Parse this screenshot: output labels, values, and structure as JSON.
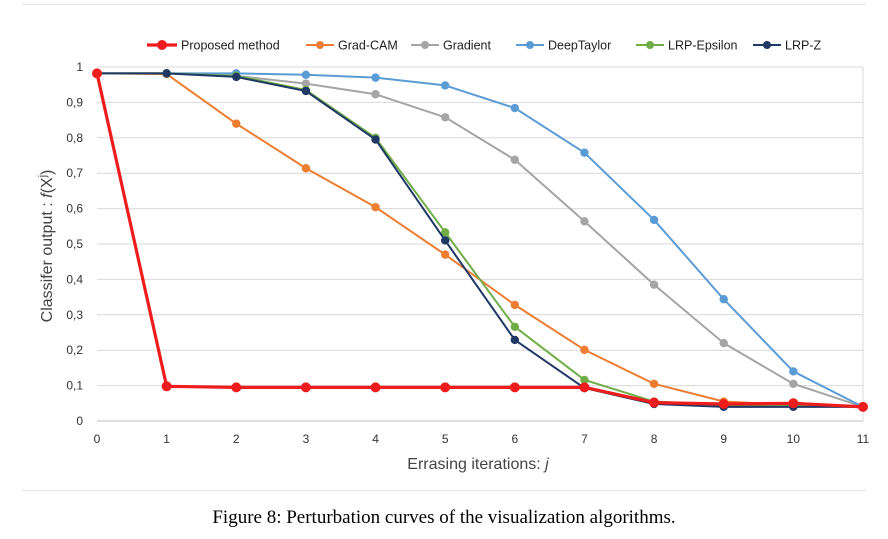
{
  "caption": "Figure 8: Perturbation curves of the visualization algorithms.",
  "chart_data": {
    "type": "line",
    "title": "",
    "xlabel": "Errasing iterations: j",
    "ylabel": "Classifer output : f(X^j)",
    "x": [
      0,
      1,
      2,
      3,
      4,
      5,
      6,
      7,
      8,
      9,
      10,
      11
    ],
    "x_tick_labels": [
      "0",
      "1",
      "2",
      "3",
      "4",
      "5",
      "6",
      "7",
      "8",
      "9",
      "10",
      "11"
    ],
    "y_tick_labels": [
      "0",
      "0,1",
      "0,2",
      "0,3",
      "0,4",
      "0,5",
      "0,6",
      "0,7",
      "0,8",
      "0,9",
      "1"
    ],
    "xlim": [
      0,
      11
    ],
    "ylim": [
      0,
      1
    ],
    "grid": "horizontal",
    "legend_position": "top",
    "series": [
      {
        "name": "Proposed method",
        "color": "#ee1c1c",
        "values": [
          0.982,
          0.098,
          0.095,
          0.095,
          0.095,
          0.095,
          0.095,
          0.095,
          0.052,
          0.048,
          0.05,
          0.04
        ]
      },
      {
        "name": "Grad-CAM",
        "color": "#ed7d31",
        "values": [
          0.982,
          0.98,
          0.84,
          0.714,
          0.604,
          0.47,
          0.328,
          0.201,
          0.105,
          0.055,
          0.045,
          0.04
        ]
      },
      {
        "name": "Gradient",
        "color": "#a5a5a5",
        "values": [
          0.982,
          0.982,
          0.975,
          0.953,
          0.923,
          0.858,
          0.738,
          0.564,
          0.385,
          0.22,
          0.105,
          0.04
        ]
      },
      {
        "name": "DeepTaylor",
        "color": "#5b9bd5",
        "values": [
          0.982,
          0.982,
          0.982,
          0.978,
          0.97,
          0.948,
          0.884,
          0.758,
          0.568,
          0.344,
          0.14,
          0.04
        ]
      },
      {
        "name": "LRP-Epsilon",
        "color": "#70ad47",
        "values": [
          0.982,
          0.982,
          0.975,
          0.935,
          0.8,
          0.533,
          0.266,
          0.116,
          0.055,
          0.045,
          0.042,
          0.04
        ]
      },
      {
        "name": "LRP-Z",
        "color": "#203864",
        "values": [
          0.982,
          0.982,
          0.972,
          0.932,
          0.795,
          0.51,
          0.229,
          0.093,
          0.048,
          0.04,
          0.04,
          0.04
        ]
      }
    ]
  }
}
